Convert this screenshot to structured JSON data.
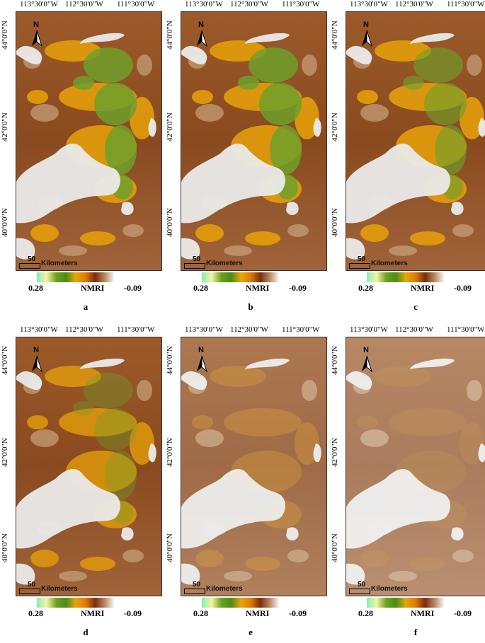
{
  "axes": {
    "lon_labels": [
      "113°30'0\"W",
      "112°30'0\"W",
      "111°30'0\"W"
    ],
    "lat_labels": [
      "44°0'0\"N",
      "42°0'0\"N",
      "40°0'0\"N"
    ]
  },
  "north_arrow_label": "N",
  "scale_bar": {
    "value": "50",
    "unit": "Kilometers"
  },
  "legend": {
    "title": "NMRI",
    "min_label": "0.28",
    "max_label": "-0.09",
    "ramp": [
      "#7ff0b8",
      "#f7f3a0",
      "#6aa321",
      "#4e8a16",
      "#e2a80a",
      "#e07b07",
      "#7a2e0c",
      "#b98a63",
      "#ffffff"
    ]
  },
  "panels": [
    {
      "id": "a",
      "label": "a"
    },
    {
      "id": "b",
      "label": "b"
    },
    {
      "id": "c",
      "label": "c"
    },
    {
      "id": "d",
      "label": "d"
    },
    {
      "id": "e",
      "label": "e"
    },
    {
      "id": "f",
      "label": "f"
    }
  ]
}
